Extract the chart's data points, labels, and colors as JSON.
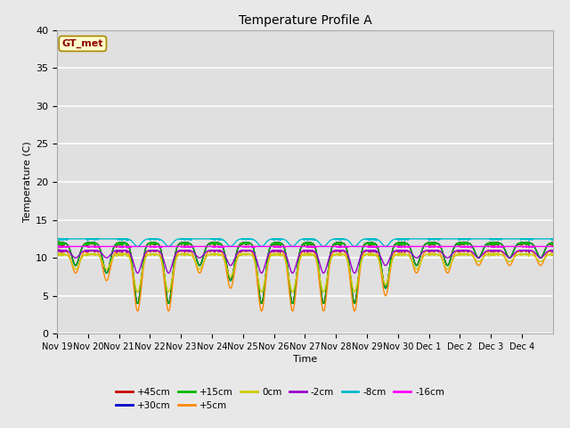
{
  "title": "Temperature Profile A",
  "xlabel": "Time",
  "ylabel": "Temperature (C)",
  "ylim": [
    0,
    40
  ],
  "background_color": "#e8e8e8",
  "plot_bg_color": "#e0e0e0",
  "grid_color": "white",
  "annotation_text": "GT_met",
  "annotation_color": "#8b0000",
  "annotation_bg": "#ffffcc",
  "series": [
    {
      "label": "+45cm",
      "color": "#cc0000"
    },
    {
      "label": "+30cm",
      "color": "#0000cc"
    },
    {
      "label": "+15cm",
      "color": "#00bb00"
    },
    {
      "label": "+5cm",
      "color": "#ff8800"
    },
    {
      "label": "0cm",
      "color": "#cccc00"
    },
    {
      "label": "-2cm",
      "color": "#9900cc"
    },
    {
      "label": "-8cm",
      "color": "#00bbcc"
    },
    {
      "label": "-16cm",
      "color": "#ff00ff"
    }
  ],
  "xtick_labels": [
    "Nov 19",
    "Nov 20",
    "Nov 21",
    "Nov 22",
    "Nov 23",
    "Nov 24",
    "Nov 25",
    "Nov 26",
    "Nov 27",
    "Nov 28",
    "Nov 29",
    "Nov 30",
    "Dec 1",
    "Dec 2",
    "Dec 3",
    "Dec 4"
  ],
  "ytick_values": [
    0,
    5,
    10,
    15,
    20,
    25,
    30,
    35,
    40
  ],
  "n_days": 16
}
